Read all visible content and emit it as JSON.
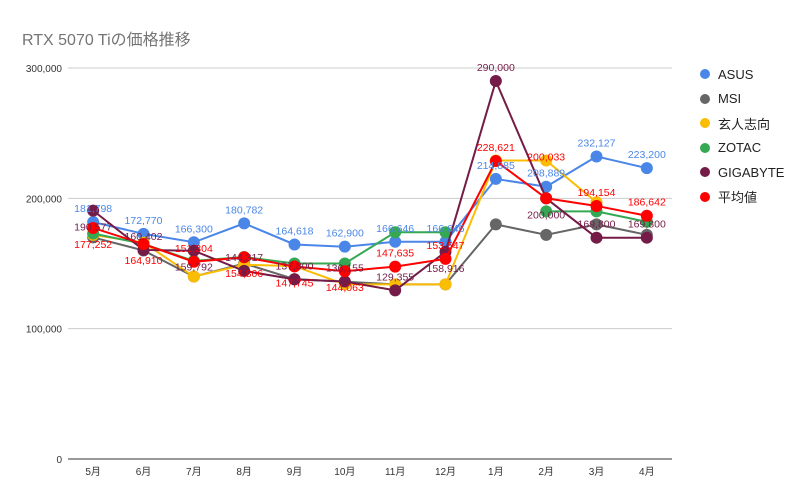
{
  "chart_data": {
    "type": "line",
    "title": "RTX 5070 Tiの価格推移",
    "categories": [
      "5月",
      "6月",
      "7月",
      "8月",
      "9月",
      "10月",
      "11月",
      "12月",
      "1月",
      "2月",
      "3月",
      "4月"
    ],
    "ylim": [
      0,
      300000
    ],
    "yticks": [
      "0",
      "100,000",
      "200,000",
      "300,000"
    ],
    "grid": true,
    "legend": "right",
    "series": [
      {
        "name": "ASUS",
        "color": "#4a86e8",
        "labels": true,
        "values": [
          181798,
          172770,
          166300,
          180782,
          164618,
          162900,
          166646,
          166646,
          214885,
          208889,
          232127,
          223200
        ]
      },
      {
        "name": "MSI",
        "color": "#666666",
        "labels": false,
        "values": [
          170000,
          160000,
          140000,
          150000,
          138000,
          136000,
          134000,
          134000,
          180000,
          172000,
          180000,
          172000
        ]
      },
      {
        "name": "玄人志向",
        "color": "#fbbc04",
        "labels": false,
        "values": [
          172000,
          166000,
          140000,
          149000,
          148000,
          134000,
          134000,
          134000,
          229000,
          229000,
          197000,
          null
        ]
      },
      {
        "name": "ZOTAC",
        "color": "#34a853",
        "labels": false,
        "values": [
          173000,
          165000,
          152000,
          155000,
          150000,
          150000,
          174000,
          174000,
          null,
          190000,
          190000,
          182000
        ]
      },
      {
        "name": "GIGABYTE",
        "color": "#741b47",
        "labels": true,
        "values": [
          190577,
          160402,
          159792,
          144317,
          137800,
          136155,
          129355,
          158916,
          290000,
          200000,
          169800,
          169800
        ]
      },
      {
        "name": "平均値",
        "color": "#ff0000",
        "labels": true,
        "values": [
          177252,
          164910,
          151304,
          154806,
          147745,
          144063,
          147635,
          153547,
          228621,
          200033,
          194154,
          186642
        ]
      }
    ]
  }
}
